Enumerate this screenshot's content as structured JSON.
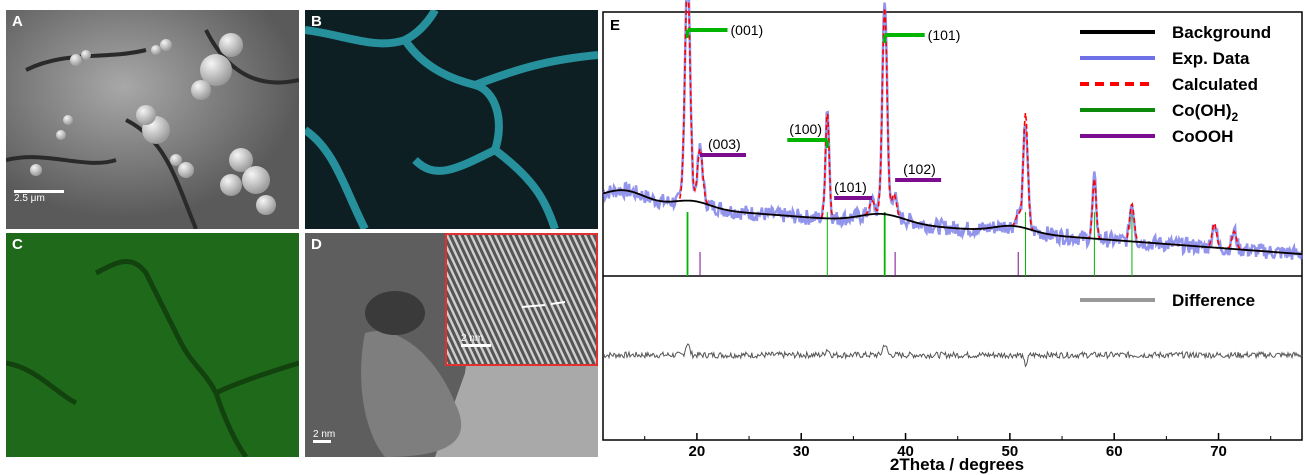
{
  "panels": {
    "A": {
      "label": "A",
      "scale": "2.5 μm"
    },
    "B": {
      "label": "B"
    },
    "C": {
      "label": "C"
    },
    "D": {
      "label": "D",
      "scale": "2 nm",
      "inset_scale": "2 nm"
    },
    "E": {
      "label": "E"
    }
  },
  "colors": {
    "background": "#000000",
    "exp": "#6f72e6",
    "calculated": "#ff0000",
    "coOH2": "#00b400",
    "cooh": "#7b0d8e",
    "difference": "#555555",
    "legend_difference": "#999999"
  },
  "chart_data": {
    "type": "line",
    "xlabel": "2Theta / degrees",
    "xlim": [
      11,
      78
    ],
    "xticks": [
      20,
      30,
      40,
      50,
      60,
      70
    ],
    "legend": [
      "Background",
      "Exp. Data",
      "Calculated",
      "Co(OH)2",
      "CoOOH"
    ],
    "legend_difference": "Difference",
    "peaks": [
      {
        "pos": 19.1,
        "h": 1.0,
        "w": 0.35
      },
      {
        "pos": 20.3,
        "h": 0.24,
        "w": 0.35
      },
      {
        "pos": 32.5,
        "h": 0.48,
        "w": 0.25
      },
      {
        "pos": 36.8,
        "h": 0.06,
        "w": 0.35
      },
      {
        "pos": 38.0,
        "h": 0.93,
        "w": 0.32
      },
      {
        "pos": 38.9,
        "h": 0.1,
        "w": 0.3
      },
      {
        "pos": 50.8,
        "h": 0.06,
        "w": 0.3
      },
      {
        "pos": 51.5,
        "h": 0.52,
        "w": 0.3
      },
      {
        "pos": 58.1,
        "h": 0.27,
        "w": 0.25
      },
      {
        "pos": 61.7,
        "h": 0.17,
        "w": 0.3
      },
      {
        "pos": 69.6,
        "h": 0.11,
        "w": 0.3
      },
      {
        "pos": 71.5,
        "h": 0.08,
        "w": 0.3
      }
    ],
    "ticks_coOH2": [
      19.1,
      32.5,
      38.0,
      51.5,
      58.1,
      61.7
    ],
    "ticks_cooh": [
      20.3,
      39.0,
      50.8
    ],
    "annotations": [
      {
        "text": "(001)",
        "phase": "Co(OH)2",
        "pos": 19.1
      },
      {
        "text": "(003)",
        "phase": "CoOOH",
        "pos": 20.3
      },
      {
        "text": "(100)",
        "phase": "Co(OH)2",
        "pos": 32.5
      },
      {
        "text": "(101)",
        "phase": "CoOOH",
        "pos": 36.8
      },
      {
        "text": "(101)",
        "phase": "Co(OH)2",
        "pos": 38.0
      },
      {
        "text": "(102)",
        "phase": "CoOOH",
        "pos": 39.0
      }
    ]
  }
}
